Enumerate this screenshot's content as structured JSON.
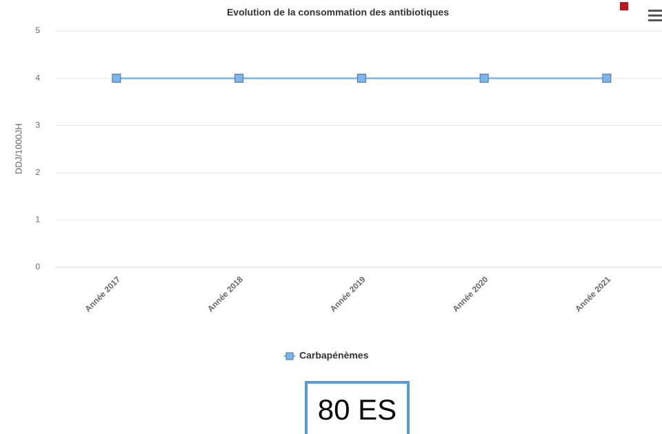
{
  "chart_data": {
    "type": "line",
    "title": "Evolution de la consommation des antibiotiques",
    "y_label": "DDJ/1000JH",
    "categories": [
      "Année 2017",
      "Année 2018",
      "Année 2019",
      "Année 2020",
      "Année 2021"
    ],
    "series": [
      {
        "name": "Carbapénèmes",
        "color": "#7cb5ec",
        "values": [
          4,
          4,
          4,
          4,
          4
        ]
      }
    ],
    "ylim": [
      0,
      5
    ],
    "yticks": [
      0,
      1,
      2,
      3,
      4,
      5
    ],
    "grid": true,
    "legend": "bottom",
    "annotation": "80 ES"
  }
}
